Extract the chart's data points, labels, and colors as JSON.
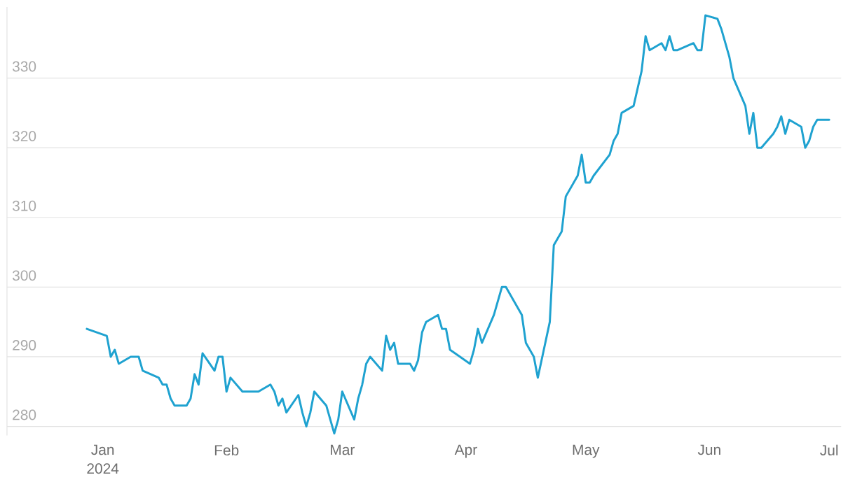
{
  "chart_data": {
    "type": "line",
    "color": "#1fa2d0",
    "grid": "y",
    "xlim": [
      "2023-12-08",
      "2024-07-04"
    ],
    "ylim": [
      278.7,
      340.2
    ],
    "xticks": [
      {
        "value": "2024-01-01",
        "label": "Jan 2024"
      },
      {
        "value": "2024-02-01",
        "label": "Feb"
      },
      {
        "value": "2024-03-01",
        "label": "Mar"
      },
      {
        "value": "2024-04-01",
        "label": "Apr"
      },
      {
        "value": "2024-05-01",
        "label": "May"
      },
      {
        "value": "2024-06-01",
        "label": "Jun"
      },
      {
        "value": "2024-07-01",
        "label": "Jul"
      }
    ],
    "yticks": [
      280,
      290,
      300,
      310,
      320,
      330
    ],
    "x": [
      "2023-12-28",
      "2024-01-02",
      "2024-01-03",
      "2024-01-04",
      "2024-01-05",
      "2024-01-08",
      "2024-01-10",
      "2024-01-11",
      "2024-01-15",
      "2024-01-16",
      "2024-01-17",
      "2024-01-18",
      "2024-01-19",
      "2024-01-22",
      "2024-01-23",
      "2024-01-24",
      "2024-01-25",
      "2024-01-26",
      "2024-01-29",
      "2024-01-30",
      "2024-01-31",
      "2024-02-01",
      "2024-02-02",
      "2024-02-05",
      "2024-02-09",
      "2024-02-12",
      "2024-02-13",
      "2024-02-14",
      "2024-02-15",
      "2024-02-16",
      "2024-02-19",
      "2024-02-20",
      "2024-02-21",
      "2024-02-22",
      "2024-02-23",
      "2024-02-26",
      "2024-02-28",
      "2024-02-29",
      "2024-03-01",
      "2024-03-04",
      "2024-03-05",
      "2024-03-06",
      "2024-03-07",
      "2024-03-08",
      "2024-03-11",
      "2024-03-12",
      "2024-03-13",
      "2024-03-14",
      "2024-03-15",
      "2024-03-18",
      "2024-03-19",
      "2024-03-20",
      "2024-03-21",
      "2024-03-22",
      "2024-03-25",
      "2024-03-26",
      "2024-03-27",
      "2024-03-28",
      "2024-04-02",
      "2024-04-03",
      "2024-04-04",
      "2024-04-05",
      "2024-04-08",
      "2024-04-10",
      "2024-04-11",
      "2024-04-15",
      "2024-04-16",
      "2024-04-18",
      "2024-04-19",
      "2024-04-22",
      "2024-04-23",
      "2024-04-25",
      "2024-04-26",
      "2024-04-29",
      "2024-04-30",
      "2024-05-01",
      "2024-05-02",
      "2024-05-03",
      "2024-05-07",
      "2024-05-08",
      "2024-05-09",
      "2024-05-10",
      "2024-05-13",
      "2024-05-15",
      "2024-05-16",
      "2024-05-17",
      "2024-05-20",
      "2024-05-21",
      "2024-05-22",
      "2024-05-23",
      "2024-05-24",
      "2024-05-28",
      "2024-05-29",
      "2024-05-30",
      "2024-05-31",
      "2024-06-03",
      "2024-06-04",
      "2024-06-06",
      "2024-06-07",
      "2024-06-10",
      "2024-06-11",
      "2024-06-12",
      "2024-06-13",
      "2024-06-14",
      "2024-06-17",
      "2024-06-18",
      "2024-06-19",
      "2024-06-20",
      "2024-06-21",
      "2024-06-24",
      "2024-06-25",
      "2024-06-26",
      "2024-06-27",
      "2024-06-28",
      "2024-07-01"
    ],
    "values": [
      294,
      293,
      290,
      291,
      289,
      290,
      290,
      288,
      287,
      286,
      286,
      284,
      283,
      283,
      284,
      287.5,
      286,
      290.5,
      288,
      290,
      290,
      285,
      287,
      285,
      285,
      286,
      285,
      283,
      284,
      282,
      284.5,
      282,
      280,
      282,
      285,
      283,
      279,
      281,
      285,
      281,
      284,
      286,
      289,
      290,
      288,
      293,
      291,
      292,
      289,
      289,
      288,
      289.5,
      293.5,
      295,
      296,
      294,
      294,
      291,
      289,
      291,
      294,
      292,
      296,
      300,
      300,
      296,
      292,
      290,
      287,
      295,
      306,
      308,
      313,
      316,
      319,
      315,
      315,
      316,
      319,
      321,
      322,
      325,
      326,
      331,
      336,
      334,
      335,
      334,
      336,
      334,
      334,
      335,
      334,
      334,
      339,
      338.5,
      337,
      333,
      330,
      326,
      322,
      325,
      320,
      320,
      322,
      323,
      324.5,
      322,
      324,
      323,
      320,
      321,
      323,
      324,
      324
    ]
  }
}
